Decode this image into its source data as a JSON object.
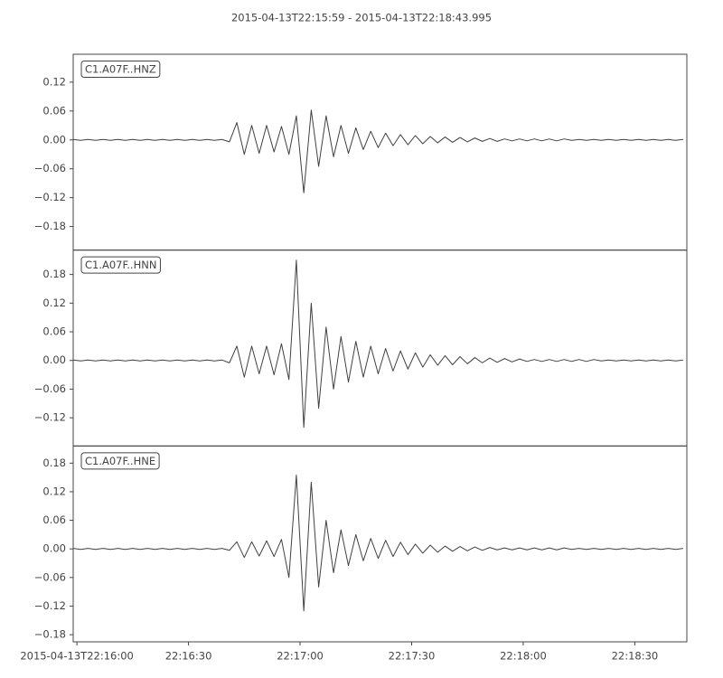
{
  "chart_data": {
    "type": "line",
    "title": "2015-04-13T22:15:59  -  2015-04-13T22:18:43.995",
    "xlim": [
      "2015-04-13T22:15:59",
      "2015-04-13T22:18:43.995"
    ],
    "xticks": [
      "2015-04-13T22:16:00",
      {
        "value": "2015-04-13T22:16:30",
        "label": "22:16:30"
      },
      {
        "value": "2015-04-13T22:17:00",
        "label": "22:17:00"
      },
      {
        "value": "2015-04-13T22:17:30",
        "label": "22:17:30"
      },
      {
        "value": "2015-04-13T22:18:00",
        "label": "22:18:00"
      },
      {
        "value": "2015-04-13T22:18:30",
        "label": "22:18:30"
      }
    ],
    "x": [
      "2015-04-13T22:15:59",
      "2015-04-13T22:16:01",
      "2015-04-13T22:16:03",
      "2015-04-13T22:16:05",
      "2015-04-13T22:16:07",
      "2015-04-13T22:16:09",
      "2015-04-13T22:16:11",
      "2015-04-13T22:16:13",
      "2015-04-13T22:16:15",
      "2015-04-13T22:16:17",
      "2015-04-13T22:16:19",
      "2015-04-13T22:16:21",
      "2015-04-13T22:16:23",
      "2015-04-13T22:16:25",
      "2015-04-13T22:16:27",
      "2015-04-13T22:16:29",
      "2015-04-13T22:16:31",
      "2015-04-13T22:16:33",
      "2015-04-13T22:16:35",
      "2015-04-13T22:16:37",
      "2015-04-13T22:16:39",
      "2015-04-13T22:16:41",
      "2015-04-13T22:16:43",
      "2015-04-13T22:16:45",
      "2015-04-13T22:16:47",
      "2015-04-13T22:16:49",
      "2015-04-13T22:16:51",
      "2015-04-13T22:16:53",
      "2015-04-13T22:16:55",
      "2015-04-13T22:16:57",
      "2015-04-13T22:16:59",
      "2015-04-13T22:17:01",
      "2015-04-13T22:17:03",
      "2015-04-13T22:17:05",
      "2015-04-13T22:17:07",
      "2015-04-13T22:17:09",
      "2015-04-13T22:17:11",
      "2015-04-13T22:17:13",
      "2015-04-13T22:17:15",
      "2015-04-13T22:17:17",
      "2015-04-13T22:17:19",
      "2015-04-13T22:17:21",
      "2015-04-13T22:17:23",
      "2015-04-13T22:17:25",
      "2015-04-13T22:17:27",
      "2015-04-13T22:17:29",
      "2015-04-13T22:17:31",
      "2015-04-13T22:17:33",
      "2015-04-13T22:17:35",
      "2015-04-13T22:17:37",
      "2015-04-13T22:17:39",
      "2015-04-13T22:17:41",
      "2015-04-13T22:17:43",
      "2015-04-13T22:17:45",
      "2015-04-13T22:17:47",
      "2015-04-13T22:17:49",
      "2015-04-13T22:17:51",
      "2015-04-13T22:17:53",
      "2015-04-13T22:17:55",
      "2015-04-13T22:17:57",
      "2015-04-13T22:17:59",
      "2015-04-13T22:18:01",
      "2015-04-13T22:18:03",
      "2015-04-13T22:18:05",
      "2015-04-13T22:18:07",
      "2015-04-13T22:18:09",
      "2015-04-13T22:18:11",
      "2015-04-13T22:18:13",
      "2015-04-13T22:18:15",
      "2015-04-13T22:18:17",
      "2015-04-13T22:18:19",
      "2015-04-13T22:18:21",
      "2015-04-13T22:18:23",
      "2015-04-13T22:18:25",
      "2015-04-13T22:18:27",
      "2015-04-13T22:18:29",
      "2015-04-13T22:18:31",
      "2015-04-13T22:18:33",
      "2015-04-13T22:18:35",
      "2015-04-13T22:18:37",
      "2015-04-13T22:18:39",
      "2015-04-13T22:18:41",
      "2015-04-13T22:18:43"
    ],
    "series": [
      {
        "name": "C1.A07F..HNZ",
        "color": "#404040",
        "ylim": [
          -0.229,
          0.178
        ],
        "yticks": [
          0.12,
          0.06,
          {
            "value": 0,
            "label": "0.00"
          },
          {
            "value": -0.06,
            "label": "−0.06"
          },
          {
            "value": -0.12,
            "label": "−0.12"
          },
          {
            "value": -0.18,
            "label": "−0.18"
          }
        ],
        "values": [
          0.001,
          -0.001,
          0.001,
          -0.001,
          0.001,
          -0.001,
          0.001,
          -0.001,
          0.001,
          -0.001,
          0.001,
          -0.001,
          0.001,
          -0.001,
          0.001,
          -0.001,
          0.001,
          -0.001,
          0.001,
          -0.001,
          0.001,
          -0.004,
          0.036,
          -0.03,
          0.03,
          -0.028,
          0.03,
          -0.025,
          0.028,
          -0.03,
          0.05,
          -0.11,
          0.062,
          -0.055,
          0.05,
          -0.035,
          0.03,
          -0.028,
          0.025,
          -0.02,
          0.018,
          -0.016,
          0.014,
          -0.012,
          0.011,
          -0.01,
          0.009,
          -0.008,
          0.007,
          -0.006,
          0.006,
          -0.005,
          0.005,
          -0.004,
          0.004,
          -0.003,
          0.003,
          -0.003,
          0.002,
          -0.002,
          0.002,
          -0.002,
          0.002,
          -0.002,
          0.002,
          -0.002,
          0.002,
          -0.001,
          0.001,
          -0.001,
          0.001,
          -0.001,
          0.001,
          -0.001,
          0.001,
          -0.001,
          0.001,
          -0.001,
          0.001,
          -0.001,
          0.001,
          -0.001,
          0.001
        ]
      },
      {
        "name": "C1.A07F..HNN",
        "color": "#404040",
        "ylim": [
          -0.179,
          0.231
        ],
        "yticks": [
          0.18,
          0.12,
          0.06,
          {
            "value": 0,
            "label": "0.00"
          },
          {
            "value": -0.06,
            "label": "−0.06"
          },
          {
            "value": -0.12,
            "label": "−0.12"
          }
        ],
        "values": [
          0.001,
          -0.001,
          0.001,
          -0.001,
          0.001,
          -0.001,
          0.001,
          -0.001,
          0.001,
          -0.001,
          0.001,
          -0.001,
          0.001,
          -0.001,
          0.001,
          -0.001,
          0.001,
          -0.001,
          0.001,
          -0.001,
          0.001,
          -0.005,
          0.03,
          -0.035,
          0.03,
          -0.028,
          0.03,
          -0.03,
          0.035,
          -0.04,
          0.21,
          -0.14,
          0.12,
          -0.1,
          0.07,
          -0.06,
          0.05,
          -0.045,
          0.04,
          -0.035,
          0.03,
          -0.028,
          0.025,
          -0.022,
          0.02,
          -0.018,
          0.016,
          -0.014,
          0.012,
          -0.01,
          0.01,
          -0.009,
          0.008,
          -0.007,
          0.006,
          -0.005,
          0.005,
          -0.004,
          0.004,
          -0.003,
          0.003,
          -0.002,
          0.002,
          -0.002,
          0.002,
          -0.002,
          0.002,
          -0.002,
          0.002,
          -0.002,
          0.002,
          -0.001,
          0.001,
          -0.001,
          0.001,
          -0.001,
          0.001,
          -0.001,
          0.001,
          -0.001,
          0.001,
          -0.001,
          0.001
        ]
      },
      {
        "name": "C1.A07F..HNE",
        "color": "#404040",
        "ylim": [
          -0.195,
          0.216
        ],
        "yticks": [
          0.18,
          0.12,
          0.06,
          {
            "value": 0,
            "label": "0.00"
          },
          {
            "value": -0.06,
            "label": "−0.06"
          },
          {
            "value": -0.12,
            "label": "−0.12"
          },
          {
            "value": -0.18,
            "label": "−0.18"
          }
        ],
        "values": [
          0.001,
          -0.001,
          0.001,
          -0.001,
          0.001,
          -0.001,
          0.001,
          -0.001,
          0.001,
          -0.001,
          0.001,
          -0.001,
          0.001,
          -0.001,
          0.001,
          -0.001,
          0.001,
          -0.001,
          0.001,
          -0.001,
          0.001,
          -0.003,
          0.015,
          -0.018,
          0.015,
          -0.015,
          0.017,
          -0.016,
          0.02,
          -0.06,
          0.155,
          -0.13,
          0.14,
          -0.08,
          0.06,
          -0.05,
          0.04,
          -0.035,
          0.03,
          -0.025,
          0.022,
          -0.02,
          0.018,
          -0.016,
          0.014,
          -0.012,
          0.01,
          -0.009,
          0.008,
          -0.007,
          0.006,
          -0.005,
          0.005,
          -0.004,
          0.004,
          -0.003,
          0.003,
          -0.002,
          0.002,
          -0.002,
          0.002,
          -0.002,
          0.002,
          -0.002,
          0.002,
          -0.002,
          0.002,
          -0.001,
          0.001,
          -0.001,
          0.001,
          -0.001,
          0.001,
          -0.001,
          0.001,
          -0.001,
          0.001,
          -0.001,
          0.001,
          -0.001,
          0.001,
          -0.001,
          0.001
        ]
      }
    ]
  }
}
